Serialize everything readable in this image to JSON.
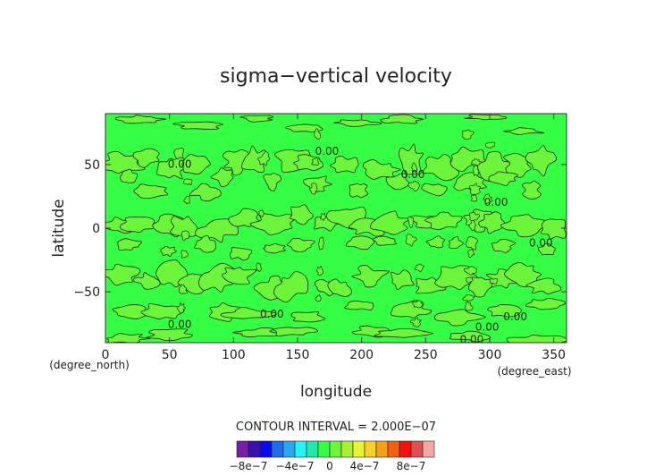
{
  "chart_data": {
    "type": "heatmap",
    "title": "sigma−vertical velocity",
    "xlabel": "longitude",
    "ylabel": "latitude",
    "x_unit": "(degree_east)",
    "y_unit": "(degree_north)",
    "xlim": [
      0,
      360
    ],
    "ylim": [
      -90,
      90
    ],
    "x_ticks": [
      0,
      50,
      100,
      150,
      200,
      250,
      300,
      350
    ],
    "y_ticks": [
      -50,
      0,
      50
    ],
    "contour_interval_text": "CONTOUR INTERVAL = 2.000E−07",
    "contour_labels": [
      {
        "text": "0.00",
        "lon": 173,
        "lat": 60
      },
      {
        "text": "0.00",
        "lon": 58,
        "lat": 50
      },
      {
        "text": "0.00",
        "lon": 240,
        "lat": 42
      },
      {
        "text": "0.00",
        "lon": 305,
        "lat": 20
      },
      {
        "text": "0.00",
        "lon": 340,
        "lat": -12
      },
      {
        "text": "0.00",
        "lon": 130,
        "lat": -68
      },
      {
        "text": "0.00",
        "lon": 58,
        "lat": -76
      },
      {
        "text": "0.00",
        "lon": 320,
        "lat": -70
      },
      {
        "text": "0.00",
        "lon": 298,
        "lat": -78
      },
      {
        "text": "0.00",
        "lon": 286,
        "lat": -88
      }
    ],
    "colorbar": {
      "bins": [
        {
          "lower": -9e-07,
          "upper": -8e-07,
          "color": "#7b1fa2"
        },
        {
          "lower": -8e-07,
          "upper": -7e-07,
          "color": "#3a10b0"
        },
        {
          "lower": -7e-07,
          "upper": -6e-07,
          "color": "#0a0aee"
        },
        {
          "lower": -6e-07,
          "upper": -5e-07,
          "color": "#1f6cf0"
        },
        {
          "lower": -5e-07,
          "upper": -4e-07,
          "color": "#2aa6f2"
        },
        {
          "lower": -4e-07,
          "upper": -3e-07,
          "color": "#22f5f5"
        },
        {
          "lower": -3e-07,
          "upper": -2e-07,
          "color": "#22e8a8"
        },
        {
          "lower": -2e-07,
          "upper": 0,
          "color": "#35ff45"
        },
        {
          "lower": 0,
          "upper": 2e-07,
          "color": "#6cf53a"
        },
        {
          "lower": 2e-07,
          "upper": 3e-07,
          "color": "#a8f035"
        },
        {
          "lower": 3e-07,
          "upper": 4e-07,
          "color": "#e8f530"
        },
        {
          "lower": 4e-07,
          "upper": 5e-07,
          "color": "#f5d028"
        },
        {
          "lower": 5e-07,
          "upper": 6e-07,
          "color": "#f59f18"
        },
        {
          "lower": 6e-07,
          "upper": 7e-07,
          "color": "#f56010"
        },
        {
          "lower": 7e-07,
          "upper": 8e-07,
          "color": "#f51010"
        },
        {
          "lower": 8e-07,
          "upper": 9e-07,
          "color": "#e05050"
        },
        {
          "lower": 9e-07,
          "upper": 1e-06,
          "color": "#f5a6a6"
        }
      ],
      "tick_labels": [
        {
          "text": "−8e−7",
          "value": -8e-07
        },
        {
          "text": "−4e−7",
          "value": -4e-07
        },
        {
          "text": "0",
          "value": 0
        },
        {
          "text": "4e−7",
          "value": 4e-07
        },
        {
          "text": "8e−7",
          "value": 8e-07
        }
      ]
    },
    "colors": {
      "background_field": "#35ff45",
      "positive_patches": "#6cf53a",
      "contour_line": "#1a2a10"
    },
    "grid": false,
    "legend": "bottom-center colorbar"
  }
}
